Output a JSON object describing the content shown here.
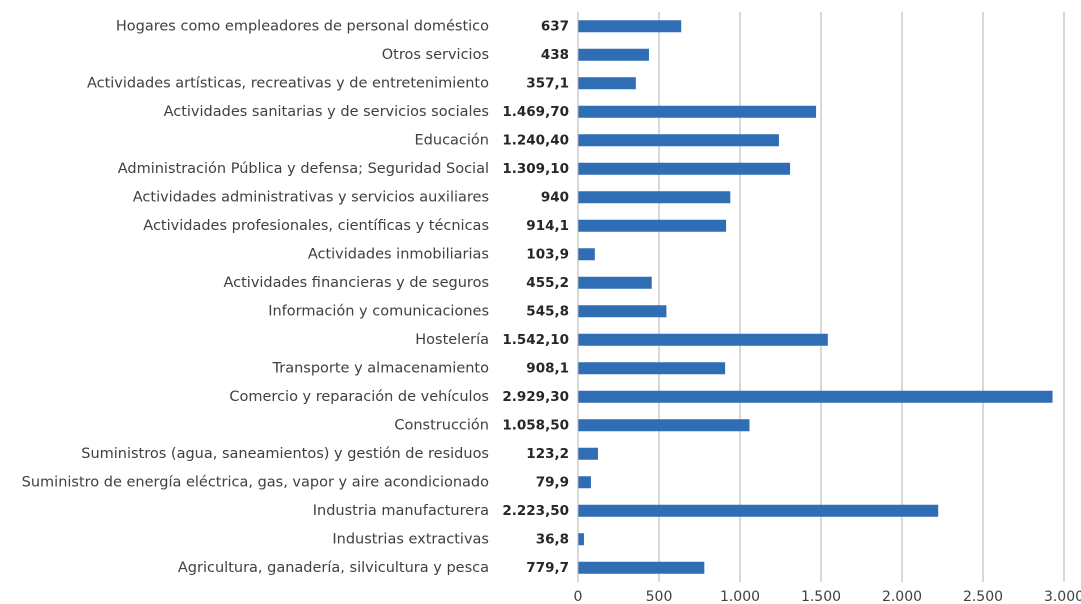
{
  "chart_data": {
    "type": "hbar",
    "categories": [
      "Hogares como empleadores de personal doméstico",
      "Otros servicios",
      "Actividades artísticas, recreativas y de entretenimiento",
      "Actividades sanitarias y de servicios sociales",
      "Educación",
      "Administración Pública y defensa; Seguridad Social",
      "Actividades administrativas y servicios auxiliares",
      "Actividades profesionales, científicas y técnicas",
      "Actividades inmobiliarias",
      "Actividades financieras y de seguros",
      "Información y comunicaciones",
      "Hostelería",
      "Transporte y almacenamiento",
      "Comercio y reparación de vehículos",
      "Construcción",
      "Suministros (agua, saneamientos) y gestión de residuos",
      "Suministro de energía eléctrica, gas, vapor y aire acondicionado",
      "Industria manufacturera",
      "Industrias extractivas",
      "Agricultura, ganadería, silvicultura y pesca"
    ],
    "values": [
      637,
      438,
      357.1,
      1469.7,
      1240.4,
      1309.1,
      940,
      914.1,
      103.9,
      455.2,
      545.8,
      1542.1,
      908.1,
      2929.3,
      1058.5,
      123.2,
      79.9,
      2223.5,
      36.8,
      779.7
    ],
    "value_labels": [
      "637",
      "438",
      "357,1",
      "1.469,70",
      "1.240,40",
      "1.309,10",
      "940",
      "914,1",
      "103,9",
      "455,2",
      "545,8",
      "1.542,10",
      "908,1",
      "2.929,30",
      "1.058,50",
      "123,2",
      "79,9",
      "2.223,50",
      "36,8",
      "779,7"
    ],
    "color": "#2f6db5",
    "xlim": [
      0,
      3000
    ],
    "xticks": [
      0,
      500,
      {
        "value": 1000,
        "label": "1.000"
      },
      {
        "value": 1500,
        "label": "1.500"
      },
      {
        "value": 2000,
        "label": "2.000"
      },
      {
        "value": 2500,
        "label": "2.500"
      },
      {
        "value": 3000,
        "label": "3.000"
      }
    ],
    "grid": true
  }
}
